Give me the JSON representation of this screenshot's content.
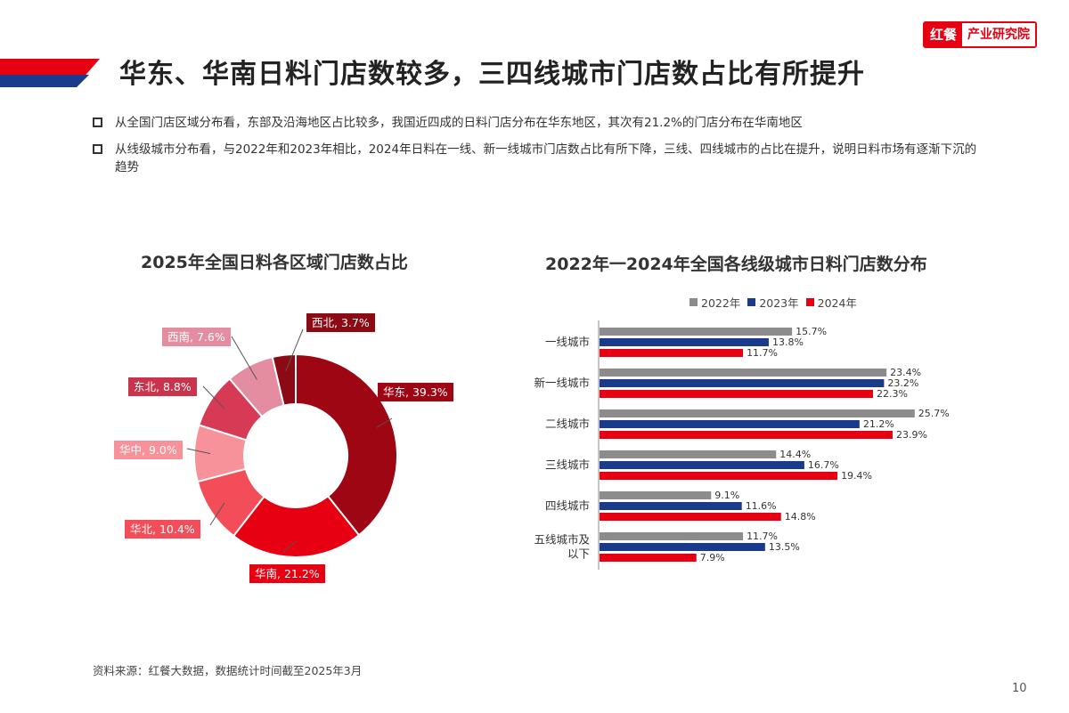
{
  "header": {
    "title": "华东、华南日料门店数较多，三四线城市门店数占比有所提升",
    "brand_mark": "红餐",
    "brand_text": "产业研究院"
  },
  "bullets": [
    "从全国门店区域分布看，东部及沿海地区占比较多，我国近四成的日料门店分布在华东地区，其次有21.2%的门店分布在华南地区",
    "从线级城市分布看，与2022年和2023年相比，2024年日料在一线、新一线城市门店数占比有所下降，三线、四线城市的占比在提升，说明日料市场有逐渐下沉的趋势"
  ],
  "chart_data": [
    {
      "type": "pie",
      "title": "2025年全国日料各区域门店数占比",
      "hole": 0.5,
      "categories": [
        "华东",
        "华南",
        "华北",
        "华中",
        "东北",
        "西南",
        "西北"
      ],
      "values": [
        39.3,
        21.2,
        10.4,
        9.0,
        8.8,
        7.6,
        3.7
      ],
      "labels": [
        "华东, 39.3%",
        "华南, 21.2%",
        "华北, 10.4%",
        "华中, 9.0%",
        "东北, 8.8%",
        "西南, 7.6%",
        "西北, 3.7%"
      ],
      "colors": [
        "#9e0613",
        "#e60012",
        "#f34d5a",
        "#f7919a",
        "#d63a55",
        "#e48ca0",
        "#8b0a14"
      ],
      "label_colors": [
        "#9e0613",
        "#e60012",
        "#f34d5a",
        "#f7919a",
        "#c9334c",
        "#e48ca0",
        "#8b0a14"
      ]
    },
    {
      "type": "bar",
      "orientation": "horizontal",
      "title": "2022年一2024年全国各线级城市日料门店数分布",
      "categories": [
        "一线城市",
        "新一线城市",
        "二线城市",
        "三线城市",
        "四线城市",
        "五线城市及以下"
      ],
      "category_lines": [
        [
          "一线城市"
        ],
        [
          "新一线城市"
        ],
        [
          "二线城市"
        ],
        [
          "三线城市"
        ],
        [
          "四线城市"
        ],
        [
          "五线城市及",
          "以下"
        ]
      ],
      "series": [
        {
          "name": "2022年",
          "color": "#8c8c8c",
          "values": [
            15.7,
            23.4,
            25.7,
            14.4,
            9.1,
            11.7
          ],
          "labels": [
            "15.7%",
            "23.4%",
            "25.7%",
            "14.4%",
            "9.1%",
            "11.7%"
          ]
        },
        {
          "name": "2023年",
          "color": "#1a3a8c",
          "values": [
            13.8,
            23.2,
            21.2,
            16.7,
            11.6,
            13.5
          ],
          "labels": [
            "13.8%",
            "23.2%",
            "21.2%",
            "16.7%",
            "11.6%",
            "13.5%"
          ]
        },
        {
          "name": "2024年",
          "color": "#e60012",
          "values": [
            11.7,
            22.3,
            23.9,
            19.4,
            14.8,
            7.9
          ],
          "labels": [
            "11.7%",
            "22.3%",
            "23.9%",
            "19.4%",
            "14.8%",
            "7.9%"
          ]
        }
      ],
      "xlim": [
        0,
        30
      ],
      "legend": "top"
    }
  ],
  "footer": {
    "source": "资料来源：红餐大数据，数据统计时间截至2025年3月",
    "page_number": "10"
  }
}
